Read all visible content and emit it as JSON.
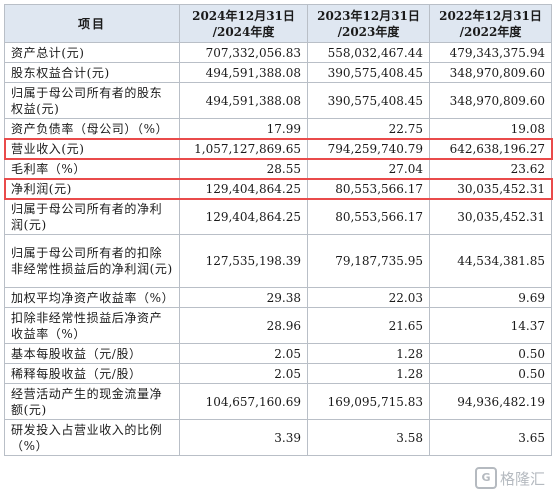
{
  "table": {
    "headers": [
      "项目",
      "2024年12月31日/2024年度",
      "2023年12月31日/2023年度",
      "2022年12月31日/2022年度"
    ],
    "header_lines": [
      [
        "项目"
      ],
      [
        "2024年12月31日",
        "/2024年度"
      ],
      [
        "2023年12月31日",
        "/2023年度"
      ],
      [
        "2022年12月31日",
        "/2022年度"
      ]
    ],
    "rows": [
      {
        "label": "资产总计(元)",
        "values": [
          "707,332,056.83",
          "558,032,467.44",
          "479,343,375.94"
        ]
      },
      {
        "label": "股东权益合计(元)",
        "values": [
          "494,591,388.08",
          "390,575,408.45",
          "348,970,809.60"
        ]
      },
      {
        "label": "归属于母公司所有者的股东权益(元)",
        "values": [
          "494,591,388.08",
          "390,575,408.45",
          "348,970,809.60"
        ]
      },
      {
        "label": "资产负债率（母公司）（%）",
        "values": [
          "17.99",
          "22.75",
          "19.08"
        ]
      },
      {
        "label": "营业收入(元)",
        "values": [
          "1,057,127,869.65",
          "794,259,740.79",
          "642,638,196.27"
        ]
      },
      {
        "label": "毛利率（%）",
        "values": [
          "28.55",
          "27.04",
          "23.62"
        ]
      },
      {
        "label": "净利润(元)",
        "values": [
          "129,404,864.25",
          "80,553,566.17",
          "30,035,452.31"
        ]
      },
      {
        "label": "归属于母公司所有者的净利润(元)",
        "values": [
          "129,404,864.25",
          "80,553,566.17",
          "30,035,452.31"
        ]
      },
      {
        "label": "归属于母公司所有者的扣除非经常性损益后的净利润(元)",
        "values": [
          "127,535,198.39",
          "79,187,735.95",
          "44,534,381.85"
        ]
      },
      {
        "label": "加权平均净资产收益率（%）",
        "values": [
          "29.38",
          "22.03",
          "9.69"
        ]
      },
      {
        "label": "扣除非经常性损益后净资产收益率（%）",
        "values": [
          "28.96",
          "21.65",
          "14.37"
        ]
      },
      {
        "label": "基本每股收益（元/股）",
        "values": [
          "2.05",
          "1.28",
          "0.50"
        ]
      },
      {
        "label": "稀释每股收益（元/股）",
        "values": [
          "2.05",
          "1.28",
          "0.50"
        ]
      },
      {
        "label": "经营活动产生的现金流量净额(元)",
        "values": [
          "104,657,160.69",
          "169,095,715.83",
          "94,936,482.19"
        ]
      },
      {
        "label": "研发投入占营业收入的比例（%）",
        "values": [
          "3.39",
          "3.58",
          "3.65"
        ]
      }
    ]
  },
  "highlight_color": "#e94b4b",
  "watermark": "格隆汇"
}
